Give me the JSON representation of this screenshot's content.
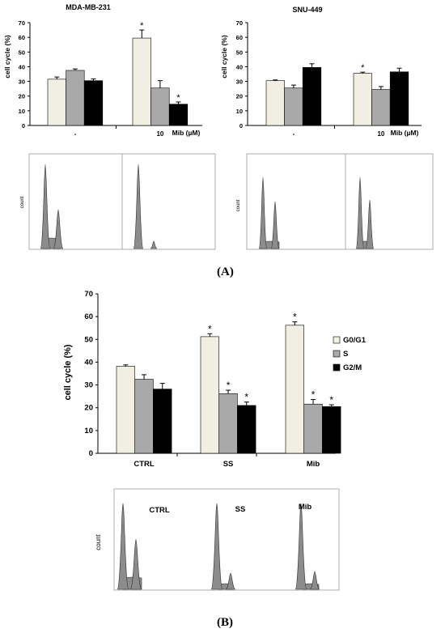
{
  "colors": {
    "g0g1": "#F1EFE3",
    "s": "#A9A9A9",
    "g2m": "#000000",
    "histogram": "#8C8C8C"
  },
  "panels": {
    "a_label": "(A)",
    "b_label": "(B)"
  },
  "histograms": {
    "count_label": "count",
    "panel_b_labels": [
      "CTRL",
      "SS",
      "Mib"
    ]
  },
  "chart_data": [
    {
      "type": "bar",
      "title": "MDA-MB-231",
      "ylabel": "cell cycle (%)",
      "xlabel": "Mib (µM)",
      "categories": [
        "-",
        "10"
      ],
      "ylim": [
        0,
        70
      ],
      "yticks": [
        0,
        10,
        20,
        30,
        40,
        50,
        60,
        70
      ],
      "series": [
        {
          "values": [
            31.5,
            59.5
          ],
          "errors": [
            1.5,
            5.5
          ],
          "significant": [
            false,
            true
          ]
        },
        {
          "values": [
            37.5,
            25.5
          ],
          "errors": [
            1.0,
            5.0
          ],
          "significant": [
            false,
            false
          ]
        },
        {
          "values": [
            30.5,
            14.5
          ],
          "errors": [
            1.2,
            1.5
          ],
          "significant": [
            false,
            true
          ]
        }
      ]
    },
    {
      "type": "bar",
      "title": "SNU-449",
      "ylabel": "cell cycle (%)",
      "xlabel": "Mib (µM)",
      "categories": [
        "-",
        "10"
      ],
      "ylim": [
        0,
        70
      ],
      "yticks": [
        0,
        10,
        20,
        30,
        40,
        50,
        60,
        70
      ],
      "series": [
        {
          "values": [
            30.5,
            35.5
          ],
          "errors": [
            0.5,
            0.8
          ],
          "significant": [
            false,
            true
          ]
        },
        {
          "values": [
            25.5,
            24.5
          ],
          "errors": [
            2.0,
            2.0
          ],
          "significant": [
            false,
            false
          ]
        },
        {
          "values": [
            39.5,
            36.5
          ],
          "errors": [
            2.5,
            2.5
          ],
          "significant": [
            false,
            false
          ]
        }
      ]
    },
    {
      "type": "bar",
      "title": "",
      "ylabel": "cell cycle (%)",
      "xlabel": "",
      "categories": [
        "CTRL",
        "SS",
        "Mib"
      ],
      "ylim": [
        0,
        70
      ],
      "yticks": [
        0,
        10,
        20,
        30,
        40,
        50,
        60,
        70
      ],
      "legend": "right",
      "series": [
        {
          "name": "G0/G1",
          "values": [
            38.2,
            51.2,
            56.2
          ],
          "errors": [
            0.6,
            1.3,
            1.5
          ],
          "significant": [
            false,
            true,
            true
          ]
        },
        {
          "name": "S",
          "values": [
            32.5,
            26.2,
            21.6
          ],
          "errors": [
            2.0,
            1.5,
            2.0
          ],
          "significant": [
            false,
            true,
            true
          ]
        },
        {
          "name": "G2/M",
          "values": [
            28.2,
            21.0,
            20.5
          ],
          "errors": [
            2.5,
            1.5,
            0.8
          ],
          "significant": [
            false,
            true,
            true
          ]
        }
      ]
    }
  ]
}
